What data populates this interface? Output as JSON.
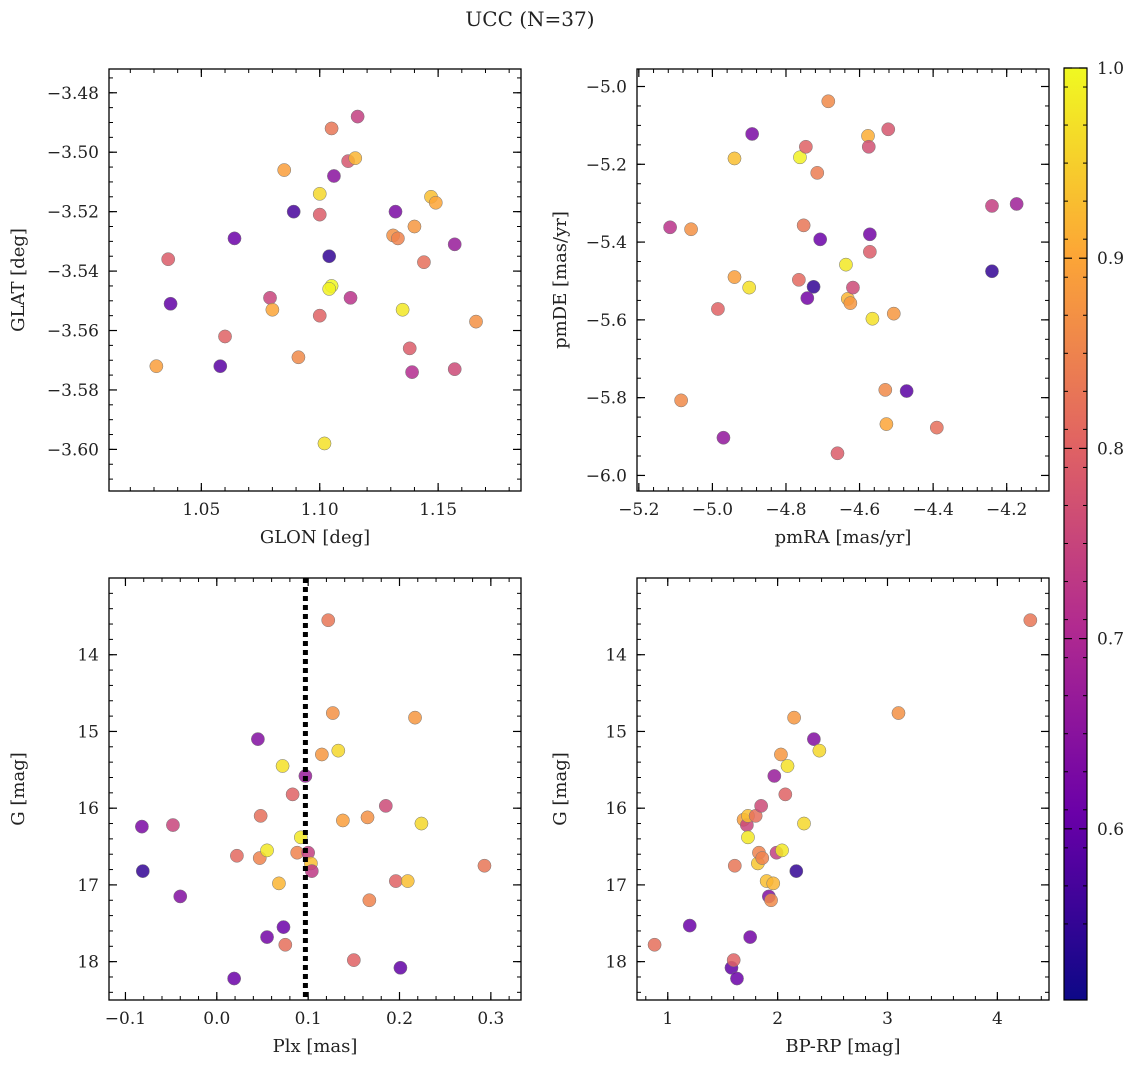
{
  "figure": {
    "title": "UCC (N=37)"
  },
  "colorbar": {
    "range": [
      0.51,
      1.0
    ],
    "ticks": [
      0.6,
      0.7,
      0.8,
      0.9,
      1.0
    ],
    "tick_labels": [
      "0.6",
      "0.7",
      "0.8",
      "0.9",
      "1.0"
    ],
    "colormap": "plasma",
    "stops": [
      "#0d0887",
      "#6a00a8",
      "#b12a90",
      "#e16462",
      "#fca636",
      "#f0f921"
    ]
  },
  "chart_data": [
    {
      "type": "scatter",
      "id": "glon-glat",
      "xlabel": "GLON [deg]",
      "ylabel": "GLAT [deg]",
      "xlim": [
        1.011,
        1.185
      ],
      "ylim": [
        -3.614,
        -3.472
      ],
      "y_inverted": false,
      "xticks": [
        1.05,
        1.1,
        1.15
      ],
      "xtick_labels": [
        "1.05",
        "1.10",
        "1.15"
      ],
      "yticks": [
        -3.48,
        -3.5,
        -3.52,
        -3.54,
        -3.56,
        -3.58,
        -3.6
      ],
      "ytick_labels": [
        "−3.48",
        "−3.50",
        "−3.52",
        "−3.54",
        "−3.56",
        "−3.58",
        "−3.60"
      ],
      "vline": null,
      "points": [
        {
          "x": 1.031,
          "y": -3.572,
          "c": 0.89
        },
        {
          "x": 1.036,
          "y": -3.536,
          "c": 0.79
        },
        {
          "x": 1.037,
          "y": -3.551,
          "c": 0.6
        },
        {
          "x": 1.058,
          "y": -3.572,
          "c": 0.59
        },
        {
          "x": 1.06,
          "y": -3.562,
          "c": 0.8
        },
        {
          "x": 1.064,
          "y": -3.529,
          "c": 0.61
        },
        {
          "x": 1.079,
          "y": -3.549,
          "c": 0.75
        },
        {
          "x": 1.08,
          "y": -3.553,
          "c": 0.9
        },
        {
          "x": 1.085,
          "y": -3.506,
          "c": 0.89
        },
        {
          "x": 1.089,
          "y": -3.52,
          "c": 0.57
        },
        {
          "x": 1.091,
          "y": -3.569,
          "c": 0.86
        },
        {
          "x": 1.1,
          "y": -3.514,
          "c": 0.96
        },
        {
          "x": 1.1,
          "y": -3.521,
          "c": 0.79
        },
        {
          "x": 1.1,
          "y": -3.555,
          "c": 0.8
        },
        {
          "x": 1.102,
          "y": -3.598,
          "c": 0.97
        },
        {
          "x": 1.104,
          "y": -3.535,
          "c": 0.55
        },
        {
          "x": 1.105,
          "y": -3.492,
          "c": 0.83
        },
        {
          "x": 1.105,
          "y": -3.545,
          "c": 1.0
        },
        {
          "x": 1.106,
          "y": -3.508,
          "c": 0.65
        },
        {
          "x": 1.112,
          "y": -3.503,
          "c": 0.78
        },
        {
          "x": 1.113,
          "y": -3.549,
          "c": 0.72
        },
        {
          "x": 1.115,
          "y": -3.502,
          "c": 0.92
        },
        {
          "x": 1.116,
          "y": -3.488,
          "c": 0.74
        },
        {
          "x": 1.131,
          "y": -3.528,
          "c": 0.87
        },
        {
          "x": 1.132,
          "y": -3.52,
          "c": 0.63
        },
        {
          "x": 1.133,
          "y": -3.529,
          "c": 0.85
        },
        {
          "x": 1.135,
          "y": -3.553,
          "c": 0.98
        },
        {
          "x": 1.138,
          "y": -3.566,
          "c": 0.79
        },
        {
          "x": 1.139,
          "y": -3.574,
          "c": 0.71
        },
        {
          "x": 1.14,
          "y": -3.525,
          "c": 0.88
        },
        {
          "x": 1.144,
          "y": -3.537,
          "c": 0.82
        },
        {
          "x": 1.147,
          "y": -3.515,
          "c": 0.93
        },
        {
          "x": 1.149,
          "y": -3.517,
          "c": 0.9
        },
        {
          "x": 1.157,
          "y": -3.531,
          "c": 0.67
        },
        {
          "x": 1.157,
          "y": -3.573,
          "c": 0.76
        },
        {
          "x": 1.166,
          "y": -3.557,
          "c": 0.87
        },
        {
          "x": 1.104,
          "y": -3.546,
          "c": 0.99
        }
      ]
    },
    {
      "type": "scatter",
      "id": "pmra-pmde",
      "xlabel": "pmRA [mas/yr]",
      "ylabel": "pmDE [mas/yr]",
      "xlim": [
        -5.205,
        -4.085
      ],
      "ylim": [
        -6.04,
        -4.955
      ],
      "y_inverted": false,
      "xticks": [
        -5.2,
        -5.0,
        -4.8,
        -4.6,
        -4.4,
        -4.2
      ],
      "xtick_labels": [
        "−5.2",
        "−5.0",
        "−4.8",
        "−4.6",
        "−4.4",
        "−4.2"
      ],
      "yticks": [
        -5.0,
        -5.2,
        -5.4,
        -5.6,
        -5.8,
        -6.0
      ],
      "ytick_labels": [
        "−5.0",
        "−5.2",
        "−5.4",
        "−5.6",
        "−5.8",
        "−6.0"
      ],
      "vline": null,
      "points": [
        {
          "x": -5.115,
          "y": -5.362,
          "c": 0.72
        },
        {
          "x": -5.058,
          "y": -5.367,
          "c": 0.87
        },
        {
          "x": -5.085,
          "y": -5.807,
          "c": 0.86
        },
        {
          "x": -4.985,
          "y": -5.572,
          "c": 0.8
        },
        {
          "x": -4.97,
          "y": -5.903,
          "c": 0.66
        },
        {
          "x": -4.94,
          "y": -5.185,
          "c": 0.93
        },
        {
          "x": -4.94,
          "y": -5.49,
          "c": 0.89
        },
        {
          "x": -4.9,
          "y": -5.517,
          "c": 0.97
        },
        {
          "x": -4.892,
          "y": -5.122,
          "c": 0.63
        },
        {
          "x": -4.762,
          "y": -5.182,
          "c": 0.99
        },
        {
          "x": -4.752,
          "y": -5.357,
          "c": 0.83
        },
        {
          "x": -4.746,
          "y": -5.155,
          "c": 0.8
        },
        {
          "x": -4.765,
          "y": -5.497,
          "c": 0.81
        },
        {
          "x": -4.742,
          "y": -5.544,
          "c": 0.62
        },
        {
          "x": -4.725,
          "y": -5.515,
          "c": 0.55
        },
        {
          "x": -4.715,
          "y": -5.222,
          "c": 0.84
        },
        {
          "x": -4.707,
          "y": -5.393,
          "c": 0.61
        },
        {
          "x": -4.685,
          "y": -5.038,
          "c": 0.86
        },
        {
          "x": -4.66,
          "y": -5.943,
          "c": 0.79
        },
        {
          "x": -4.637,
          "y": -5.458,
          "c": 0.98
        },
        {
          "x": -4.632,
          "y": -5.546,
          "c": 0.92
        },
        {
          "x": -4.625,
          "y": -5.557,
          "c": 0.88
        },
        {
          "x": -4.618,
          "y": -5.517,
          "c": 0.76
        },
        {
          "x": -4.577,
          "y": -5.127,
          "c": 0.91
        },
        {
          "x": -4.575,
          "y": -5.155,
          "c": 0.77
        },
        {
          "x": -4.572,
          "y": -5.38,
          "c": 0.62
        },
        {
          "x": -4.572,
          "y": -5.425,
          "c": 0.79
        },
        {
          "x": -4.565,
          "y": -5.597,
          "c": 0.97
        },
        {
          "x": -4.53,
          "y": -5.78,
          "c": 0.86
        },
        {
          "x": -4.527,
          "y": -5.868,
          "c": 0.9
        },
        {
          "x": -4.522,
          "y": -5.11,
          "c": 0.78
        },
        {
          "x": -4.507,
          "y": -5.584,
          "c": 0.88
        },
        {
          "x": -4.472,
          "y": -5.783,
          "c": 0.59
        },
        {
          "x": -4.39,
          "y": -5.877,
          "c": 0.82
        },
        {
          "x": -4.24,
          "y": -5.307,
          "c": 0.74
        },
        {
          "x": -4.24,
          "y": -5.475,
          "c": 0.55
        },
        {
          "x": -4.173,
          "y": -5.302,
          "c": 0.68
        }
      ]
    },
    {
      "type": "scatter",
      "id": "plx-g",
      "xlabel": "Plx [mas]",
      "ylabel": "G [mag]",
      "xlim": [
        -0.118,
        0.333
      ],
      "ylim": [
        13.0,
        18.5
      ],
      "y_inverted": true,
      "xticks": [
        -0.1,
        0.0,
        0.1,
        0.2,
        0.3
      ],
      "xtick_labels": [
        "−0.1",
        "0.0",
        "0.1",
        "0.2",
        "0.3"
      ],
      "yticks": [
        14,
        15,
        16,
        17,
        18
      ],
      "ytick_labels": [
        "14",
        "15",
        "16",
        "17",
        "18"
      ],
      "vline": {
        "x": 0.097,
        "style": "dotted"
      },
      "points": [
        {
          "x": -0.082,
          "y": 16.24,
          "c": 0.63
        },
        {
          "x": -0.081,
          "y": 16.82,
          "c": 0.55
        },
        {
          "x": -0.048,
          "y": 16.22,
          "c": 0.75
        },
        {
          "x": -0.04,
          "y": 17.15,
          "c": 0.64
        },
        {
          "x": 0.019,
          "y": 18.22,
          "c": 0.61
        },
        {
          "x": 0.022,
          "y": 16.62,
          "c": 0.81
        },
        {
          "x": 0.045,
          "y": 15.1,
          "c": 0.64
        },
        {
          "x": 0.048,
          "y": 16.1,
          "c": 0.82
        },
        {
          "x": 0.047,
          "y": 16.65,
          "c": 0.85
        },
        {
          "x": 0.055,
          "y": 17.68,
          "c": 0.62
        },
        {
          "x": 0.055,
          "y": 16.55,
          "c": 0.98
        },
        {
          "x": 0.068,
          "y": 16.98,
          "c": 0.92
        },
        {
          "x": 0.072,
          "y": 15.45,
          "c": 0.97
        },
        {
          "x": 0.073,
          "y": 17.55,
          "c": 0.61
        },
        {
          "x": 0.075,
          "y": 17.78,
          "c": 0.82
        },
        {
          "x": 0.083,
          "y": 15.82,
          "c": 0.8
        },
        {
          "x": 0.088,
          "y": 16.58,
          "c": 0.85
        },
        {
          "x": 0.092,
          "y": 16.38,
          "c": 0.98
        },
        {
          "x": 0.097,
          "y": 15.58,
          "c": 0.67
        },
        {
          "x": 0.1,
          "y": 16.58,
          "c": 0.74
        },
        {
          "x": 0.103,
          "y": 16.72,
          "c": 0.93
        },
        {
          "x": 0.104,
          "y": 16.82,
          "c": 0.73
        },
        {
          "x": 0.115,
          "y": 15.3,
          "c": 0.88
        },
        {
          "x": 0.122,
          "y": 13.55,
          "c": 0.83
        },
        {
          "x": 0.127,
          "y": 14.76,
          "c": 0.87
        },
        {
          "x": 0.133,
          "y": 15.25,
          "c": 0.96
        },
        {
          "x": 0.138,
          "y": 16.16,
          "c": 0.89
        },
        {
          "x": 0.15,
          "y": 17.98,
          "c": 0.8
        },
        {
          "x": 0.165,
          "y": 16.12,
          "c": 0.87
        },
        {
          "x": 0.167,
          "y": 17.2,
          "c": 0.85
        },
        {
          "x": 0.185,
          "y": 15.97,
          "c": 0.76
        },
        {
          "x": 0.196,
          "y": 16.95,
          "c": 0.8
        },
        {
          "x": 0.201,
          "y": 18.08,
          "c": 0.6
        },
        {
          "x": 0.209,
          "y": 16.95,
          "c": 0.93
        },
        {
          "x": 0.217,
          "y": 14.82,
          "c": 0.88
        },
        {
          "x": 0.224,
          "y": 16.2,
          "c": 0.96
        },
        {
          "x": 0.293,
          "y": 16.75,
          "c": 0.83
        }
      ]
    },
    {
      "type": "scatter",
      "id": "bprp-g",
      "xlabel": "BP-RP [mag]",
      "ylabel": "G [mag]",
      "xlim": [
        0.72,
        4.47
      ],
      "ylim": [
        13.0,
        18.5
      ],
      "y_inverted": true,
      "xticks": [
        1,
        2,
        3,
        4
      ],
      "xtick_labels": [
        "1",
        "2",
        "3",
        "4"
      ],
      "yticks": [
        14,
        15,
        16,
        17,
        18
      ],
      "ytick_labels": [
        "14",
        "15",
        "16",
        "17",
        "18"
      ],
      "vline": null,
      "points": [
        {
          "x": 0.88,
          "y": 17.78,
          "c": 0.82
        },
        {
          "x": 1.2,
          "y": 17.53,
          "c": 0.61
        },
        {
          "x": 1.58,
          "y": 18.08,
          "c": 0.6
        },
        {
          "x": 1.6,
          "y": 17.98,
          "c": 0.8
        },
        {
          "x": 1.61,
          "y": 16.75,
          "c": 0.83
        },
        {
          "x": 1.63,
          "y": 18.22,
          "c": 0.61
        },
        {
          "x": 1.69,
          "y": 16.15,
          "c": 0.89
        },
        {
          "x": 1.72,
          "y": 16.22,
          "c": 0.75
        },
        {
          "x": 1.73,
          "y": 16.1,
          "c": 0.93
        },
        {
          "x": 1.73,
          "y": 16.38,
          "c": 0.98
        },
        {
          "x": 1.75,
          "y": 17.68,
          "c": 0.62
        },
        {
          "x": 1.8,
          "y": 16.1,
          "c": 0.82
        },
        {
          "x": 1.82,
          "y": 16.72,
          "c": 0.94
        },
        {
          "x": 1.83,
          "y": 16.58,
          "c": 0.85
        },
        {
          "x": 1.85,
          "y": 15.97,
          "c": 0.76
        },
        {
          "x": 1.86,
          "y": 16.65,
          "c": 0.85
        },
        {
          "x": 1.9,
          "y": 16.95,
          "c": 0.93
        },
        {
          "x": 1.92,
          "y": 17.15,
          "c": 0.64
        },
        {
          "x": 1.94,
          "y": 17.2,
          "c": 0.86
        },
        {
          "x": 1.96,
          "y": 16.98,
          "c": 0.92
        },
        {
          "x": 1.97,
          "y": 15.58,
          "c": 0.67
        },
        {
          "x": 1.99,
          "y": 16.58,
          "c": 0.74
        },
        {
          "x": 2.03,
          "y": 15.3,
          "c": 0.88
        },
        {
          "x": 2.04,
          "y": 16.55,
          "c": 0.98
        },
        {
          "x": 2.07,
          "y": 15.82,
          "c": 0.8
        },
        {
          "x": 2.09,
          "y": 15.45,
          "c": 0.97
        },
        {
          "x": 2.15,
          "y": 14.82,
          "c": 0.88
        },
        {
          "x": 2.17,
          "y": 16.82,
          "c": 0.55
        },
        {
          "x": 2.24,
          "y": 16.2,
          "c": 0.96
        },
        {
          "x": 2.33,
          "y": 15.1,
          "c": 0.64
        },
        {
          "x": 2.38,
          "y": 15.25,
          "c": 0.96
        },
        {
          "x": 3.1,
          "y": 14.76,
          "c": 0.87
        },
        {
          "x": 4.3,
          "y": 13.55,
          "c": 0.83
        }
      ]
    }
  ]
}
